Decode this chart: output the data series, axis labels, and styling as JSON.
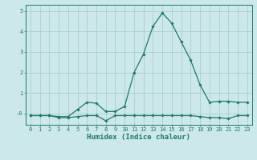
{
  "xlabel": "Humidex (Indice chaleur)",
  "x": [
    0,
    1,
    2,
    3,
    4,
    5,
    6,
    7,
    8,
    9,
    10,
    11,
    12,
    13,
    14,
    15,
    16,
    17,
    18,
    19,
    20,
    21,
    22,
    23
  ],
  "line1": [
    -0.1,
    -0.1,
    -0.1,
    -0.15,
    -0.15,
    0.2,
    0.55,
    0.5,
    0.1,
    0.1,
    0.35,
    2.0,
    2.9,
    4.25,
    4.9,
    4.4,
    3.5,
    2.6,
    1.4,
    0.55,
    0.6,
    0.6,
    0.55,
    0.55
  ],
  "line2": [
    -0.1,
    -0.1,
    -0.1,
    -0.2,
    -0.2,
    -0.15,
    -0.1,
    -0.1,
    -0.35,
    -0.1,
    -0.1,
    -0.1,
    -0.1,
    -0.1,
    -0.1,
    -0.1,
    -0.1,
    -0.1,
    -0.15,
    -0.2,
    -0.2,
    -0.25,
    -0.1,
    -0.1
  ],
  "line_color": "#1a7a6e",
  "bg_color": "#cce8e8",
  "grid_color": "#aacece",
  "ylim": [
    -0.55,
    5.3
  ],
  "xlim": [
    -0.5,
    23.5
  ],
  "yticks": [
    0,
    1,
    2,
    3,
    4,
    5
  ],
  "ytick_labels": [
    "-0",
    "1",
    "2",
    "3",
    "4",
    "5"
  ],
  "xtick_labels": [
    "0",
    "1",
    "2",
    "3",
    "4",
    "5",
    "6",
    "7",
    "8",
    "9",
    "10",
    "11",
    "12",
    "13",
    "14",
    "15",
    "16",
    "17",
    "18",
    "19",
    "20",
    "21",
    "22",
    "23"
  ],
  "marker": "D",
  "markersize": 1.8,
  "linewidth": 0.9,
  "xlabel_fontsize": 6.5,
  "tick_fontsize": 5.0
}
